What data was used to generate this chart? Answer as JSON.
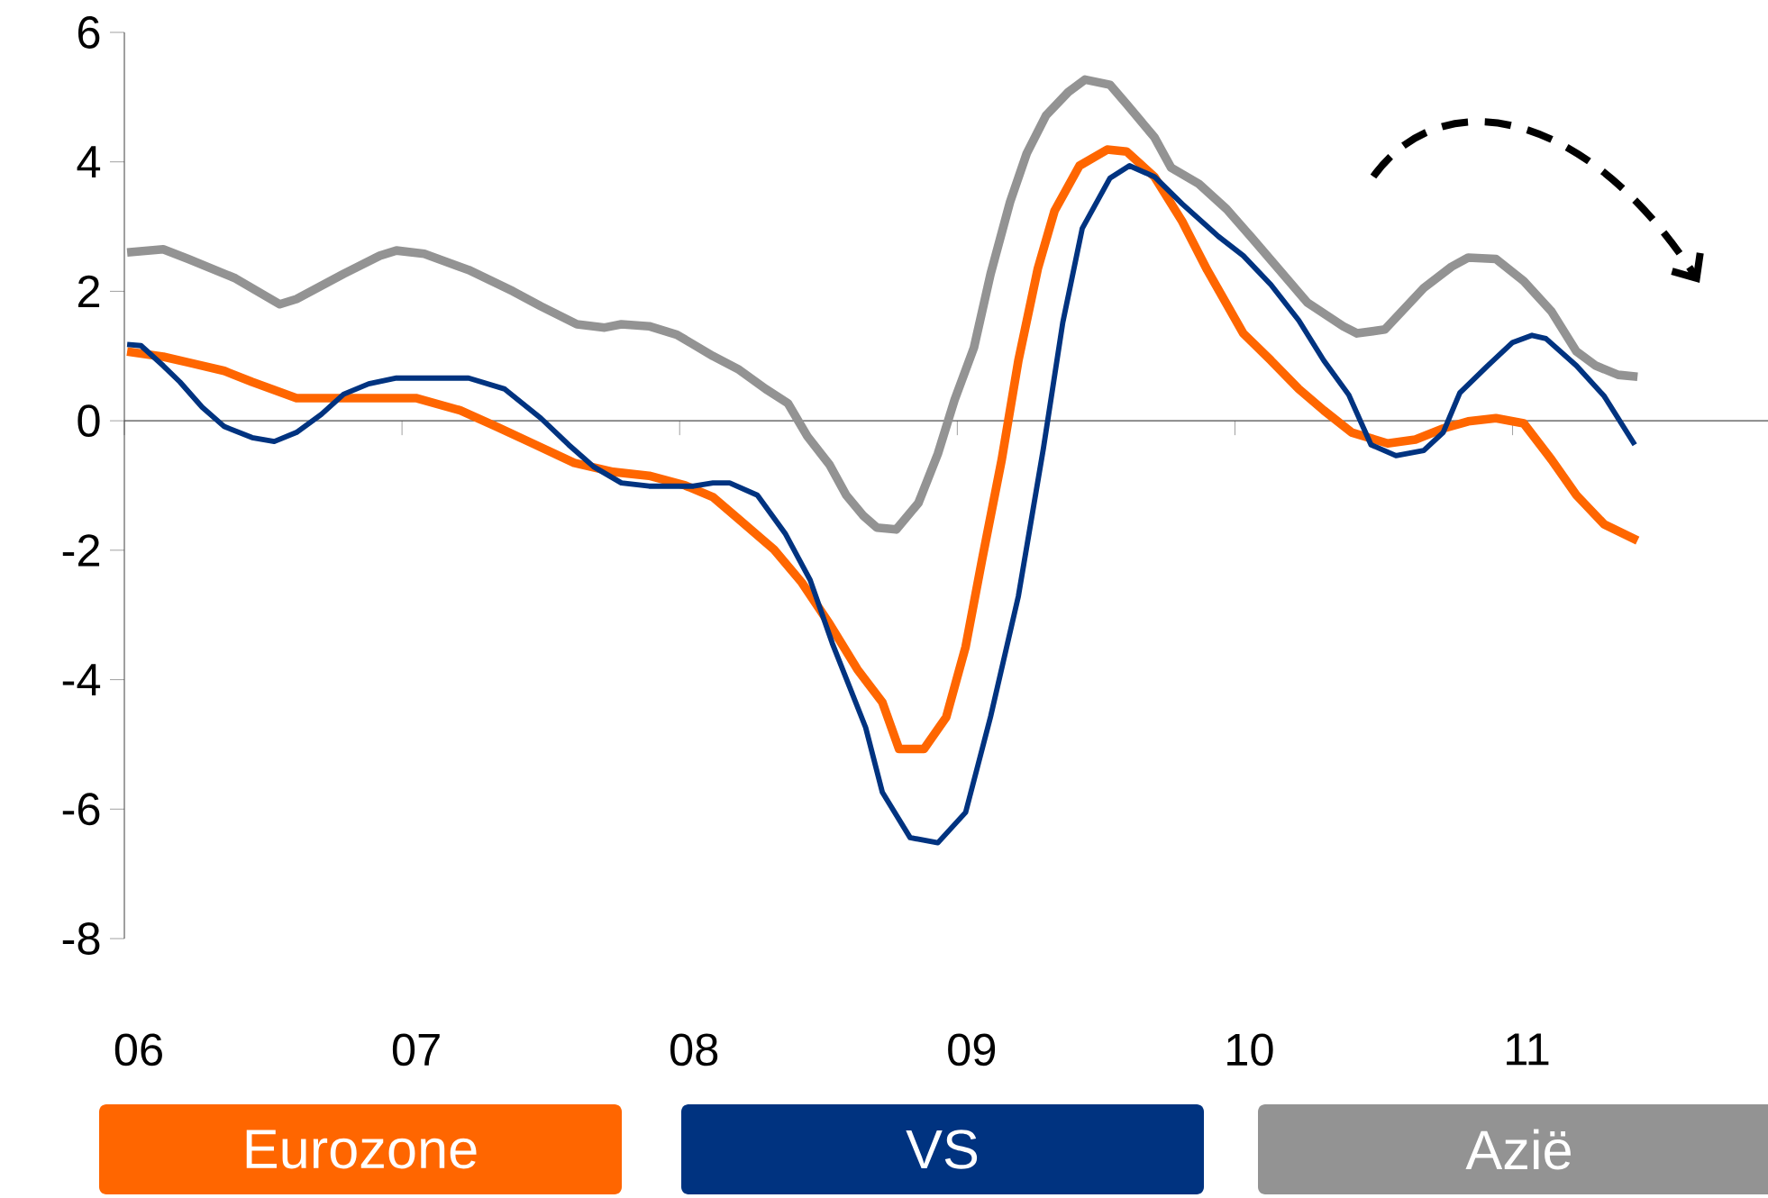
{
  "chart_data": {
    "type": "line",
    "xlim": [
      2006,
      2011.92
    ],
    "ylim": [
      -8,
      6
    ],
    "xticks": [
      {
        "value": 2006,
        "label": "06"
      },
      {
        "value": 2007,
        "label": "07"
      },
      {
        "value": 2008,
        "label": "08"
      },
      {
        "value": 2009,
        "label": "09"
      },
      {
        "value": 2010,
        "label": "10"
      },
      {
        "value": 2011,
        "label": "11"
      }
    ],
    "yticks": [
      -8,
      -6,
      -4,
      -2,
      0,
      2,
      4,
      6
    ],
    "legend": "bottom",
    "series": [
      {
        "name": "Eurozone",
        "color": "#ff6600",
        "x": [
          2006.01,
          2006.14,
          2006.23,
          2006.36,
          2006.46,
          2006.62,
          2006.79,
          2007.05,
          2007.21,
          2007.34,
          2007.47,
          2007.62,
          2007.76,
          2007.89,
          2008.02,
          2008.12,
          2008.21,
          2008.34,
          2008.44,
          2008.54,
          2008.64,
          2008.73,
          2008.79,
          2008.88,
          2008.96,
          2009.03,
          2009.09,
          2009.16,
          2009.22,
          2009.29,
          2009.35,
          2009.44,
          2009.54,
          2009.61,
          2009.71,
          2009.81,
          2009.9,
          2010.03,
          2010.13,
          2010.23,
          2010.32,
          2010.42,
          2010.55,
          2010.65,
          2010.75,
          2010.84,
          2010.94,
          2011.04,
          2011.14,
          2011.23,
          2011.33,
          2011.45
        ],
        "values": [
          1.07,
          0.99,
          0.9,
          0.77,
          0.6,
          0.35,
          0.35,
          0.35,
          0.16,
          -0.09,
          -0.35,
          -0.65,
          -0.79,
          -0.85,
          -1.0,
          -1.18,
          -1.51,
          -1.99,
          -2.5,
          -3.14,
          -3.84,
          -4.35,
          -5.07,
          -5.07,
          -4.58,
          -3.49,
          -2.13,
          -0.6,
          0.93,
          2.35,
          3.24,
          3.94,
          4.19,
          4.16,
          3.77,
          3.08,
          2.33,
          1.35,
          0.93,
          0.49,
          0.16,
          -0.18,
          -0.35,
          -0.29,
          -0.12,
          -0.01,
          0.04,
          -0.04,
          -0.6,
          -1.15,
          -1.6,
          -1.85
        ]
      },
      {
        "name": "VS",
        "color": "#003380",
        "x": [
          2006.01,
          2006.06,
          2006.14,
          2006.2,
          2006.28,
          2006.36,
          2006.46,
          2006.54,
          2006.62,
          2006.71,
          2006.79,
          2006.88,
          2006.98,
          2007.08,
          2007.24,
          2007.37,
          2007.5,
          2007.6,
          2007.69,
          2007.79,
          2007.89,
          2008.05,
          2008.12,
          2008.18,
          2008.28,
          2008.38,
          2008.47,
          2008.55,
          2008.67,
          2008.73,
          2008.83,
          2008.93,
          2009.03,
          2009.12,
          2009.22,
          2009.31,
          2009.38,
          2009.45,
          2009.55,
          2009.62,
          2009.71,
          2009.81,
          2009.94,
          2010.03,
          2010.13,
          2010.23,
          2010.32,
          2010.41,
          2010.49,
          2010.58,
          2010.68,
          2010.75,
          2010.81,
          2010.91,
          2011.0,
          2011.07,
          2011.12,
          2011.23,
          2011.33,
          2011.44
        ],
        "values": [
          1.18,
          1.16,
          0.85,
          0.6,
          0.21,
          -0.09,
          -0.26,
          -0.32,
          -0.18,
          0.1,
          0.41,
          0.57,
          0.66,
          0.66,
          0.66,
          0.49,
          0.04,
          -0.37,
          -0.71,
          -0.96,
          -1.01,
          -1.01,
          -0.96,
          -0.96,
          -1.15,
          -1.74,
          -2.46,
          -3.44,
          -4.74,
          -5.74,
          -6.44,
          -6.52,
          -6.05,
          -4.57,
          -2.71,
          -0.43,
          1.52,
          2.97,
          3.75,
          3.94,
          3.77,
          3.35,
          2.85,
          2.55,
          2.1,
          1.55,
          0.93,
          0.4,
          -0.37,
          -0.54,
          -0.46,
          -0.18,
          0.43,
          0.85,
          1.21,
          1.32,
          1.27,
          0.85,
          0.38,
          -0.37
        ]
      },
      {
        "name": "Azië",
        "color": "#939393",
        "x": [
          2006.01,
          2006.14,
          2006.23,
          2006.4,
          2006.56,
          2006.62,
          2006.79,
          2006.92,
          2006.98,
          2007.08,
          2007.24,
          2007.4,
          2007.5,
          2007.63,
          2007.73,
          2007.79,
          2007.89,
          2007.99,
          2008.12,
          2008.21,
          2008.31,
          2008.39,
          2008.46,
          2008.54,
          2008.6,
          2008.66,
          2008.71,
          2008.78,
          2008.86,
          2008.93,
          2008.99,
          2009.06,
          2009.12,
          2009.19,
          2009.25,
          2009.32,
          2009.4,
          2009.46,
          2009.55,
          2009.61,
          2009.71,
          2009.77,
          2009.87,
          2009.97,
          2010.06,
          2010.16,
          2010.26,
          2010.39,
          2010.44,
          2010.54,
          2010.68,
          2010.78,
          2010.84,
          2010.94,
          2011.04,
          2011.14,
          2011.23,
          2011.3,
          2011.38,
          2011.45
        ],
        "values": [
          2.6,
          2.65,
          2.5,
          2.2,
          1.8,
          1.88,
          2.27,
          2.55,
          2.63,
          2.58,
          2.33,
          2.0,
          1.77,
          1.49,
          1.44,
          1.49,
          1.46,
          1.33,
          1.0,
          0.8,
          0.49,
          0.27,
          -0.24,
          -0.68,
          -1.15,
          -1.46,
          -1.65,
          -1.68,
          -1.27,
          -0.51,
          0.32,
          1.13,
          2.27,
          3.38,
          4.13,
          4.72,
          5.08,
          5.27,
          5.19,
          4.89,
          4.38,
          3.91,
          3.66,
          3.27,
          2.83,
          2.33,
          1.83,
          1.46,
          1.35,
          1.41,
          2.05,
          2.38,
          2.52,
          2.5,
          2.16,
          1.69,
          1.07,
          0.85,
          0.71,
          0.68
        ]
      }
    ]
  }
}
